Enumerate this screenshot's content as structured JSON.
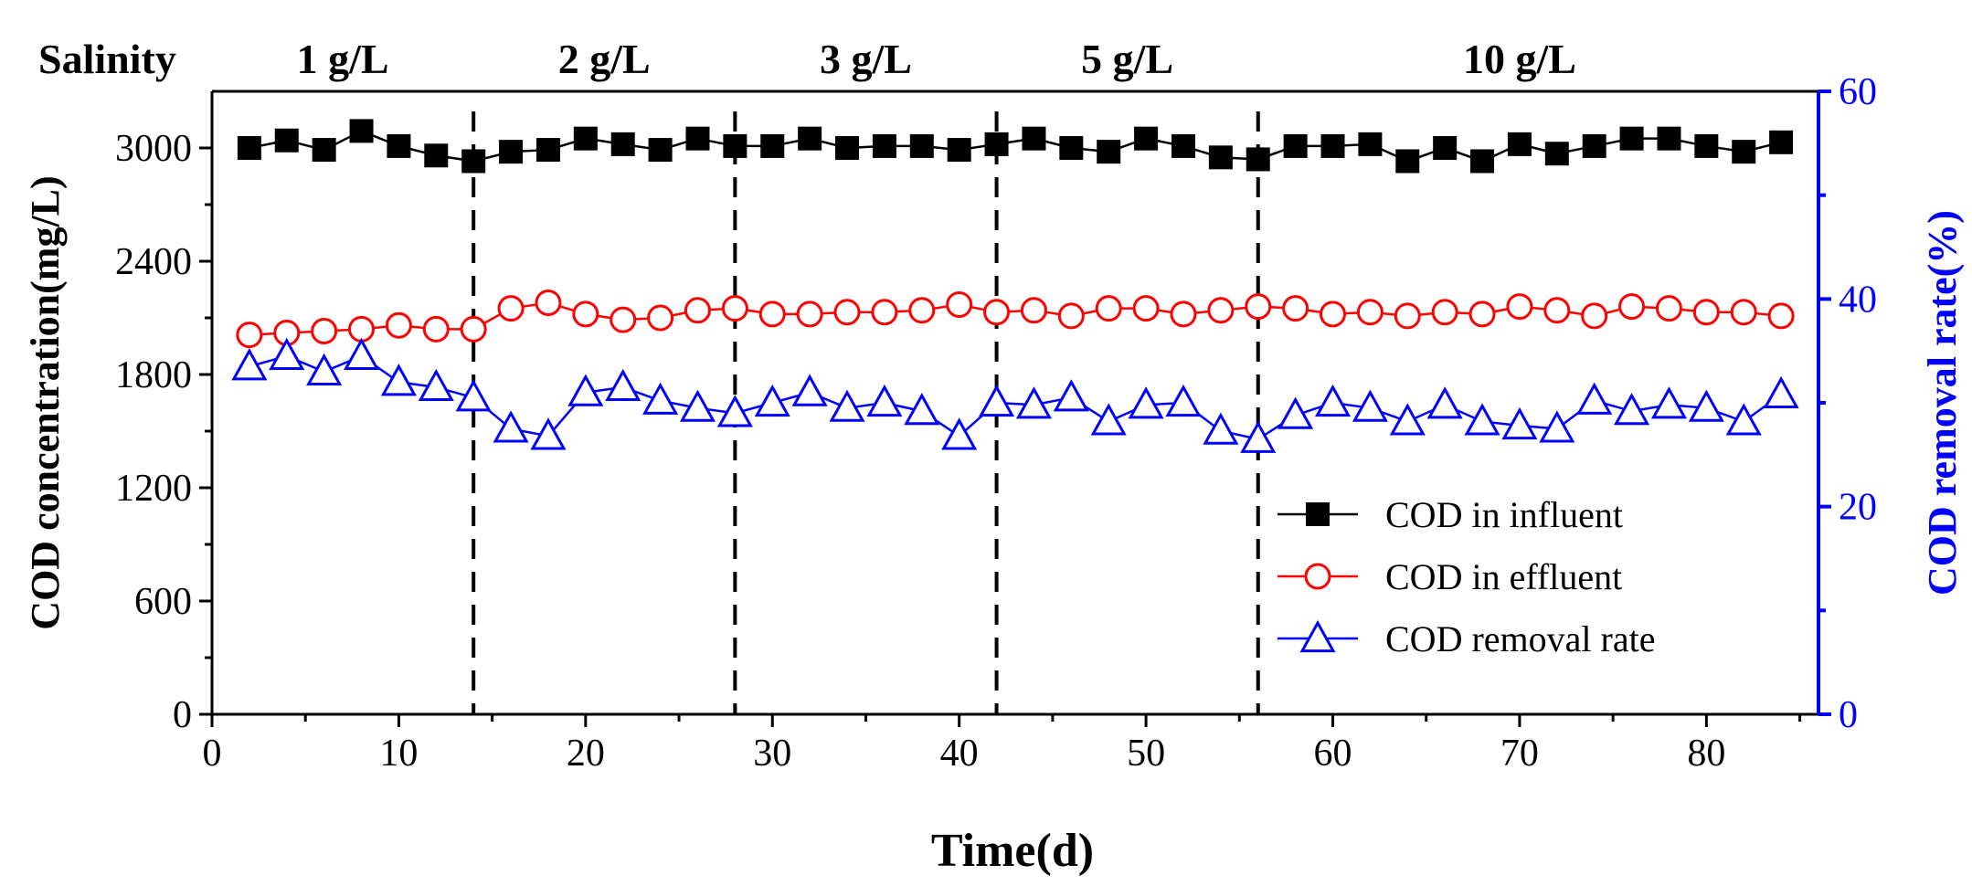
{
  "chart_data": {
    "type": "line",
    "xlabel": "Time(d)",
    "ylabel_left": "COD concentration(mg/L)",
    "ylabel_right": "COD removal rate(%)",
    "xlim": [
      0,
      86
    ],
    "ylim_left": [
      0,
      3300
    ],
    "ylim_right": [
      0,
      60
    ],
    "x_ticks": [
      0,
      10,
      20,
      30,
      40,
      50,
      60,
      70,
      80
    ],
    "y_left_ticks": [
      0,
      600,
      1200,
      1800,
      2400,
      3000
    ],
    "y_right_ticks": [
      0,
      20,
      40,
      60
    ],
    "salinity_label": "Salinity",
    "salinity_boundaries": [
      14,
      28,
      42,
      56
    ],
    "salinity_periods": [
      {
        "label": "1 g/L",
        "center": 7
      },
      {
        "label": "2 g/L",
        "center": 21
      },
      {
        "label": "3 g/L",
        "center": 35
      },
      {
        "label": "5 g/L",
        "center": 49
      },
      {
        "label": "10 g/L",
        "center": 70
      }
    ],
    "x": [
      2,
      4,
      6,
      8,
      10,
      12,
      14,
      16,
      18,
      20,
      22,
      24,
      26,
      28,
      30,
      32,
      34,
      36,
      38,
      40,
      42,
      44,
      46,
      48,
      50,
      52,
      54,
      56,
      58,
      60,
      62,
      64,
      66,
      68,
      70,
      72,
      74,
      76,
      78,
      80,
      82,
      84
    ],
    "series": [
      {
        "name": "COD in influent",
        "axis": "left",
        "color": "#000000",
        "marker": "filled-square",
        "values": [
          3000,
          3040,
          2990,
          3090,
          3010,
          2960,
          2930,
          2980,
          2990,
          3050,
          3020,
          2990,
          3050,
          3010,
          3010,
          3050,
          3000,
          3010,
          3010,
          2990,
          3020,
          3050,
          3000,
          2980,
          3050,
          3010,
          2950,
          2940,
          3010,
          3010,
          3020,
          2930,
          3000,
          2930,
          3020,
          2970,
          3010,
          3050,
          3050,
          3010,
          2980,
          3030
        ]
      },
      {
        "name": "COD in effluent",
        "axis": "left",
        "color": "#ff0000",
        "marker": "open-circle",
        "values": [
          2010,
          2020,
          2030,
          2040,
          2060,
          2040,
          2040,
          2150,
          2180,
          2120,
          2090,
          2100,
          2140,
          2150,
          2120,
          2120,
          2130,
          2130,
          2140,
          2170,
          2130,
          2140,
          2110,
          2150,
          2150,
          2120,
          2140,
          2160,
          2150,
          2120,
          2130,
          2110,
          2130,
          2120,
          2160,
          2140,
          2110,
          2160,
          2150,
          2130,
          2130,
          2110
        ]
      },
      {
        "name": "COD removal rate",
        "axis": "right",
        "color": "#0000ff",
        "marker": "open-triangle",
        "values": [
          33.5,
          34.5,
          33,
          34.5,
          32,
          31.5,
          30.5,
          27.5,
          26.8,
          31,
          31.5,
          30.2,
          29.5,
          29,
          30,
          31,
          29.5,
          30,
          29.2,
          26.8,
          30,
          29.8,
          30.5,
          28.2,
          29.8,
          30,
          27.3,
          26.5,
          28.8,
          30,
          29.5,
          28.2,
          29.8,
          28.2,
          27.8,
          27.5,
          30.2,
          29.2,
          29.8,
          29.5,
          28.2,
          30.8
        ]
      }
    ],
    "legend_position": "lower-right"
  }
}
